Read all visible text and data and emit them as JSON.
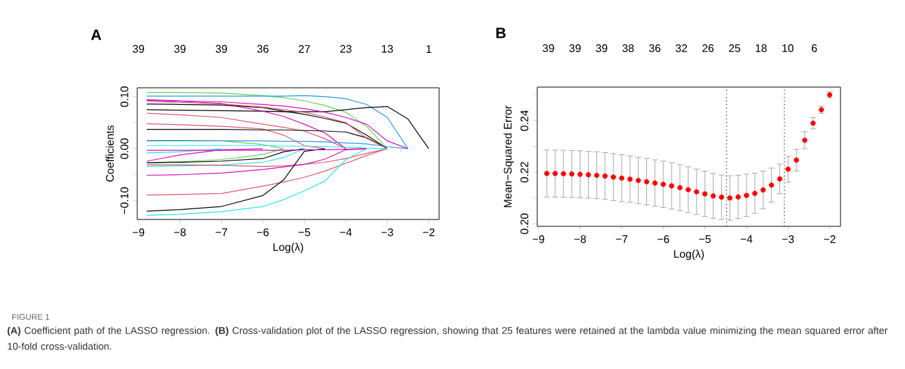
{
  "chart_data": [
    {
      "type": "line",
      "title": "A",
      "xlabel": "Log(λ)",
      "ylabel": "Coefficients",
      "line_style": "solid",
      "annotations": [
        "39",
        "39",
        "39",
        "36",
        "27",
        "23",
        "13",
        "1",
        "FIGURE 1",
        "**(A)** Coefficient path of the LASSO regression. **(B)** Cross-validation plot of the LASSO regression, showing that 25 features were retained at the lambda value minimizing the mean squared error after 10-fold cross-validation."
      ],
      "x": [
        -8.8,
        -8,
        -7,
        -6,
        -5.5,
        -5,
        -4.5,
        -4,
        -3.5,
        -3,
        -2.5,
        -2
      ],
      "series": [
        {
          "color": "#61d04f",
          "values": [
            0.108,
            0.108,
            0.107,
            0.102,
            0.098,
            0.092,
            0.083,
            0.07,
            0.043,
            0,
            null,
            null
          ]
        },
        {
          "color": "#2297e6",
          "values": [
            0.101,
            0.101,
            0.101,
            0.101,
            0.101,
            0.102,
            0.1,
            0.096,
            0.085,
            0.06,
            0,
            null
          ]
        },
        {
          "color": "#000000",
          "values": [
            0.075,
            0.074,
            0.073,
            0.072,
            0.071,
            0.071,
            0.071,
            0.075,
            0.079,
            0.081,
            0.057,
            0
          ]
        },
        {
          "color": "#cd0bbc",
          "values": [
            0.094,
            0.092,
            0.09,
            0.085,
            0.082,
            0.077,
            0.07,
            0.06,
            0.047,
            0.015,
            0,
            null
          ]
        },
        {
          "color": "#cd0bbc",
          "values": [
            0.093,
            0.091,
            0.087,
            0.072,
            0.062,
            0.047,
            0.03,
            0,
            null,
            null,
            null,
            null
          ]
        },
        {
          "color": "#000000",
          "values": [
            0.086,
            0.085,
            0.084,
            0.079,
            0.072,
            0.066,
            0.058,
            0.049,
            0.026,
            0,
            null,
            null
          ]
        },
        {
          "color": "#df536b",
          "values": [
            0.068,
            0.065,
            0.06,
            0.047,
            0.041,
            0.034,
            0.019,
            0,
            null,
            null,
            null,
            null
          ]
        },
        {
          "color": "#df536b",
          "values": [
            0.048,
            0.046,
            0.043,
            0.038,
            0.026,
            0.006,
            0,
            null,
            null,
            null,
            null,
            null
          ]
        },
        {
          "color": "#000000",
          "values": [
            0.037,
            0.037,
            0.037,
            0.036,
            0.036,
            0.035,
            0.034,
            0.032,
            0.021,
            0,
            null,
            null
          ]
        },
        {
          "color": "#df536b",
          "values": [
            0.091,
            0.089,
            0.086,
            0.08,
            0.075,
            0.07,
            0.061,
            0.05,
            0.02,
            0,
            null,
            null
          ]
        },
        {
          "color": "#61d04f",
          "values": [
            0.016,
            0.016,
            0.015,
            0.008,
            0,
            null,
            null,
            null,
            null,
            null,
            null,
            null
          ]
        },
        {
          "color": "#2297e6",
          "values": [
            0.015,
            0.015,
            0.015,
            0.015,
            0.014,
            0.014,
            0.013,
            0.011,
            0.009,
            0.004,
            0,
            null
          ]
        },
        {
          "color": "#28e2e5",
          "values": [
            -0.008,
            -0.006,
            0,
            null,
            null,
            null,
            null,
            null,
            null,
            null,
            null,
            null
          ]
        },
        {
          "color": "#cd0bbc",
          "values": [
            -0.024,
            -0.012,
            -0.002,
            0,
            null,
            null,
            null,
            null,
            null,
            null,
            null,
            null
          ]
        },
        {
          "color": "#61d04f",
          "values": [
            -0.027,
            -0.025,
            -0.021,
            -0.011,
            0,
            null,
            null,
            null,
            null,
            null,
            null,
            null
          ]
        },
        {
          "color": "#000000",
          "values": [
            -0.027,
            -0.026,
            -0.024,
            -0.019,
            -0.006,
            0,
            null,
            null,
            null,
            null,
            null,
            null
          ]
        },
        {
          "color": "#28e2e5",
          "values": [
            -0.034,
            -0.033,
            -0.031,
            -0.026,
            -0.017,
            0,
            null,
            null,
            null,
            null,
            null,
            null
          ]
        },
        {
          "color": "#df536b",
          "values": [
            -0.031,
            -0.031,
            -0.032,
            -0.034,
            -0.033,
            -0.03,
            -0.026,
            -0.019,
            -0.009,
            0,
            null,
            null
          ]
        },
        {
          "color": "#cd0bbc",
          "values": [
            -0.051,
            -0.05,
            -0.047,
            -0.04,
            -0.035,
            -0.03,
            -0.02,
            -0.002,
            0,
            null,
            null,
            null
          ]
        },
        {
          "color": "#df536b",
          "values": [
            -0.089,
            -0.088,
            -0.086,
            -0.072,
            -0.064,
            -0.055,
            -0.043,
            -0.028,
            -0.013,
            0,
            null,
            null
          ]
        },
        {
          "color": "#000000",
          "values": [
            -0.12,
            -0.117,
            -0.111,
            -0.09,
            -0.06,
            -0.005,
            0,
            null,
            null,
            null,
            null,
            null
          ]
        },
        {
          "color": "#28e2e5",
          "values": [
            -0.128,
            -0.126,
            -0.121,
            -0.111,
            -0.098,
            -0.081,
            -0.062,
            -0.021,
            0,
            null,
            null,
            null
          ]
        },
        {
          "color": "#28e2e5",
          "values": [
            0.006,
            0.006,
            0.006,
            0.006,
            0.005,
            0.005,
            0.004,
            0.003,
            0.001,
            0,
            null,
            null
          ]
        },
        {
          "color": "#cd0bbc",
          "values": [
            -0.003,
            -0.003,
            -0.003,
            -0.003,
            -0.003,
            -0.002,
            -0.002,
            -0.001,
            0,
            null,
            null,
            null
          ]
        }
      ],
      "xlim": [
        -9.03,
        -1.75
      ],
      "ylim": [
        -0.136,
        0.117
      ],
      "xticks": [
        {
          "value": -9,
          "label": "−9"
        },
        {
          "value": -8,
          "label": "−8"
        },
        {
          "value": -7,
          "label": "−7"
        },
        {
          "value": -6,
          "label": "−6"
        },
        {
          "value": -5,
          "label": "−5"
        },
        {
          "value": -4,
          "label": "−4"
        },
        {
          "value": -3,
          "label": "−3"
        },
        {
          "value": -2,
          "label": "−2"
        }
      ],
      "yticks": [
        {
          "value": -0.1,
          "label": "−0.10"
        },
        {
          "value": -0.05,
          "label": null
        },
        {
          "value": 0,
          "label": "0.00"
        },
        {
          "value": 0.05,
          "label": null
        },
        {
          "value": 0.1,
          "label": "0.10"
        }
      ]
    },
    {
      "type": "scatter",
      "title": "B",
      "xlabel": "Log(λ)",
      "ylabel": "Mean−Squared Error",
      "marker": "circle",
      "color": "#ff0000",
      "annotations": [
        "39",
        "39",
        "39",
        "38",
        "36",
        "32",
        "26",
        "25",
        "18",
        "10",
        "6"
      ],
      "x": [
        -8.8,
        -8.6,
        -8.4,
        -8.2,
        -8.0,
        -7.8,
        -7.6,
        -7.4,
        -7.2,
        -7.0,
        -6.8,
        -6.6,
        -6.4,
        -6.2,
        -6.0,
        -5.8,
        -5.6,
        -5.4,
        -5.2,
        -5.0,
        -4.8,
        -4.6,
        -4.4,
        -4.2,
        -4.0,
        -3.8,
        -3.6,
        -3.4,
        -3.2,
        -3.0,
        -2.8,
        -2.6,
        -2.4,
        -2.2,
        -2.0
      ],
      "values": [
        0.2195,
        0.2195,
        0.2194,
        0.2193,
        0.2192,
        0.219,
        0.2188,
        0.2185,
        0.2181,
        0.2177,
        0.2173,
        0.2168,
        0.2163,
        0.2158,
        0.2153,
        0.2147,
        0.214,
        0.2132,
        0.2124,
        0.2116,
        0.2108,
        0.2103,
        0.21,
        0.2104,
        0.211,
        0.2118,
        0.2131,
        0.215,
        0.2174,
        0.2212,
        0.2247,
        0.2324,
        0.239,
        0.2442,
        0.25
      ],
      "errors": [
        0.0091,
        0.0091,
        0.0091,
        0.0091,
        0.0091,
        0.0091,
        0.0091,
        0.0091,
        0.0091,
        0.0091,
        0.009,
        0.009,
        0.009,
        0.009,
        0.009,
        0.009,
        0.0089,
        0.0089,
        0.0088,
        0.0088,
        0.0087,
        0.0086,
        0.0086,
        0.0084,
        0.0082,
        0.0078,
        0.0073,
        0.0066,
        0.0058,
        0.005,
        0.0042,
        0.0033,
        0.0022,
        0.0014,
        0.0012
      ],
      "ref_lines": [
        {
          "axis": "x",
          "value": -4.48,
          "color": "#000000",
          "line_style": "dotted"
        },
        {
          "axis": "x",
          "value": -3.09,
          "color": "#000000",
          "line_style": "dotted"
        }
      ],
      "xlim": [
        -9.03,
        -1.74
      ],
      "ylim": [
        0.199,
        0.253
      ],
      "xticks": [
        {
          "value": -9,
          "label": "−9"
        },
        {
          "value": -8,
          "label": "−8"
        },
        {
          "value": -7,
          "label": "−7"
        },
        {
          "value": -6,
          "label": "−6"
        },
        {
          "value": -5,
          "label": "−5"
        },
        {
          "value": -4,
          "label": "−4"
        },
        {
          "value": -3,
          "label": "−3"
        },
        {
          "value": -2,
          "label": "−2"
        }
      ],
      "yticks": [
        {
          "value": 0.2,
          "label": "0.20"
        },
        {
          "value": 0.21,
          "label": null
        },
        {
          "value": 0.22,
          "label": "0.22"
        },
        {
          "value": 0.23,
          "label": null
        },
        {
          "value": 0.24,
          "label": "0.24"
        },
        {
          "value": 0.25,
          "label": null
        }
      ]
    }
  ]
}
